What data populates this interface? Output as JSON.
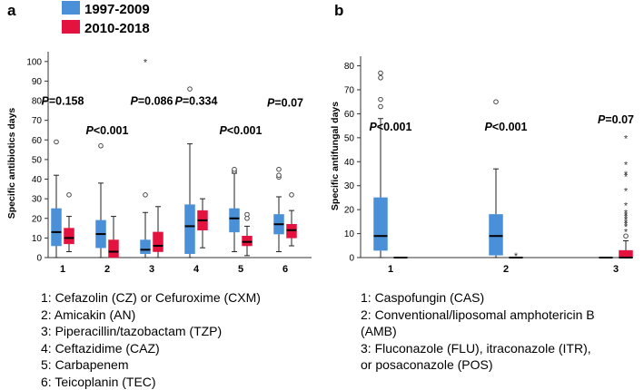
{
  "colors": {
    "period1": "#4a90d9",
    "period2": "#e3123f",
    "median": "#000000",
    "whisker": "#222222"
  },
  "chart_data": [
    {
      "type": "box",
      "panel": "a",
      "ylabel": "Specific antibiotics days",
      "ylim": [
        0,
        105
      ],
      "yticks": [
        0,
        10,
        20,
        30,
        40,
        50,
        60,
        70,
        80,
        90,
        100
      ],
      "categories": [
        "1",
        "2",
        "3",
        "4",
        "5",
        "6"
      ],
      "legend": [
        {
          "label": "1997-2009",
          "color": "#4a90d9"
        },
        {
          "label": "2010-2018",
          "color": "#e3123f"
        }
      ],
      "series": [
        {
          "name": "1997-2009",
          "color": "#4a90d9",
          "boxes": [
            {
              "q1": 6,
              "median": 13,
              "q3": 25,
              "wlo": 0,
              "whi": 42,
              "outliers": [
                59
              ],
              "extremes": []
            },
            {
              "q1": 5,
              "median": 12,
              "q3": 19,
              "wlo": 0,
              "whi": 38,
              "outliers": [
                57
              ],
              "extremes": []
            },
            {
              "q1": 2,
              "median": 4,
              "q3": 9,
              "wlo": 0,
              "whi": 23,
              "outliers": [
                32
              ],
              "extremes": [
                100
              ]
            },
            {
              "q1": 2,
              "median": 16,
              "q3": 27,
              "wlo": 0,
              "whi": 58,
              "outliers": [
                86
              ],
              "extremes": []
            },
            {
              "q1": 13,
              "median": 20,
              "q3": 25,
              "wlo": 3,
              "whi": 43,
              "outliers": [
                44,
                45
              ],
              "extremes": []
            },
            {
              "q1": 12,
              "median": 17,
              "q3": 22,
              "wlo": 3,
              "whi": 31,
              "outliers": [
                41,
                42,
                45
              ],
              "extremes": []
            }
          ]
        },
        {
          "name": "2010-2018",
          "color": "#e3123f",
          "boxes": [
            {
              "q1": 7,
              "median": 10,
              "q3": 15,
              "wlo": 3,
              "whi": 21,
              "outliers": [
                32
              ],
              "extremes": []
            },
            {
              "q1": 0,
              "median": 3,
              "q3": 9,
              "wlo": 0,
              "whi": 21,
              "outliers": [],
              "extremes": []
            },
            {
              "q1": 3,
              "median": 6,
              "q3": 13,
              "wlo": 0,
              "whi": 26,
              "outliers": [],
              "extremes": []
            },
            {
              "q1": 14,
              "median": 19,
              "q3": 24,
              "wlo": 5,
              "whi": 30,
              "outliers": [],
              "extremes": []
            },
            {
              "q1": 6,
              "median": 8,
              "q3": 11,
              "wlo": 1,
              "whi": 16,
              "outliers": [
                20,
                22
              ],
              "extremes": []
            },
            {
              "q1": 10,
              "median": 14,
              "q3": 17,
              "wlo": 6,
              "whi": 24,
              "outliers": [
                32
              ],
              "extremes": []
            }
          ]
        }
      ],
      "annotations": [
        {
          "category": "1",
          "p": "P",
          "text": "=0.158",
          "y": 78
        },
        {
          "category": "2",
          "p": "P",
          "text": "<0.001",
          "y": 63
        },
        {
          "category": "3",
          "p": "P",
          "text": "=0.086",
          "y": 78
        },
        {
          "category": "4",
          "p": "P",
          "text": "=0.334",
          "y": 78
        },
        {
          "category": "5",
          "p": "P",
          "text": "<0.001",
          "y": 63
        },
        {
          "category": "6",
          "p": "P",
          "text": "=0.07",
          "y": 77
        }
      ],
      "notes": [
        "1: Cefazolin (CZ) or Cefuroxime (CXM)",
        "2: Amicakin (AN)",
        "3: Piperacillin/tazobactam (TZP)",
        "4: Ceftazidime (CAZ)",
        "5: Carbapenem",
        "6: Teicoplanin (TEC)"
      ]
    },
    {
      "type": "box",
      "panel": "b",
      "ylabel": "Specific antifungal days",
      "ylim": [
        0,
        84
      ],
      "yticks": [
        0,
        10,
        20,
        30,
        40,
        50,
        60,
        70,
        80
      ],
      "categories": [
        "1",
        "2",
        "3"
      ],
      "series": [
        {
          "name": "1997-2009",
          "color": "#4a90d9",
          "boxes": [
            {
              "q1": 3,
              "median": 9,
              "q3": 25,
              "wlo": 0,
              "whi": 58,
              "outliers": [
                63,
                66,
                75,
                77
              ],
              "extremes": []
            },
            {
              "q1": 1,
              "median": 9,
              "q3": 18,
              "wlo": 0,
              "whi": 37,
              "outliers": [
                65
              ],
              "extremes": []
            },
            {
              "q1": 0,
              "median": 0,
              "q3": 0,
              "wlo": 0,
              "whi": 0,
              "outliers": [],
              "extremes": []
            }
          ]
        },
        {
          "name": "2010-2018",
          "color": "#e3123f",
          "boxes": [
            {
              "q1": 0,
              "median": 0,
              "q3": 0,
              "wlo": 0,
              "whi": 0,
              "outliers": [],
              "extremes": []
            },
            {
              "q1": 0,
              "median": 0,
              "q3": 0,
              "wlo": 0,
              "whi": 0,
              "outliers": [],
              "extremes": [
                1
              ]
            },
            {
              "q1": 0,
              "median": 0,
              "q3": 3,
              "wlo": 0,
              "whi": 7,
              "outliers": [
                9
              ],
              "extremes": [
                50,
                11,
                13,
                14,
                15,
                16,
                17,
                18,
                19,
                22,
                28,
                34,
                35,
                39
              ]
            }
          ]
        }
      ],
      "annotations": [
        {
          "category": "1",
          "p": "P",
          "text": "<0.001",
          "y": 53
        },
        {
          "category": "2",
          "p": "P",
          "text": "<0.001",
          "y": 53
        },
        {
          "category": "3",
          "p": "P",
          "text": "=0.07",
          "y": 56
        }
      ],
      "notes": [
        "1: Caspofungin (CAS)",
        "2: Conventional/liposomal amphotericin B",
        "(AMB)",
        "3: Fluconazole (FLU), itraconazole (ITR),",
        "or posaconazole (POS)"
      ]
    }
  ]
}
